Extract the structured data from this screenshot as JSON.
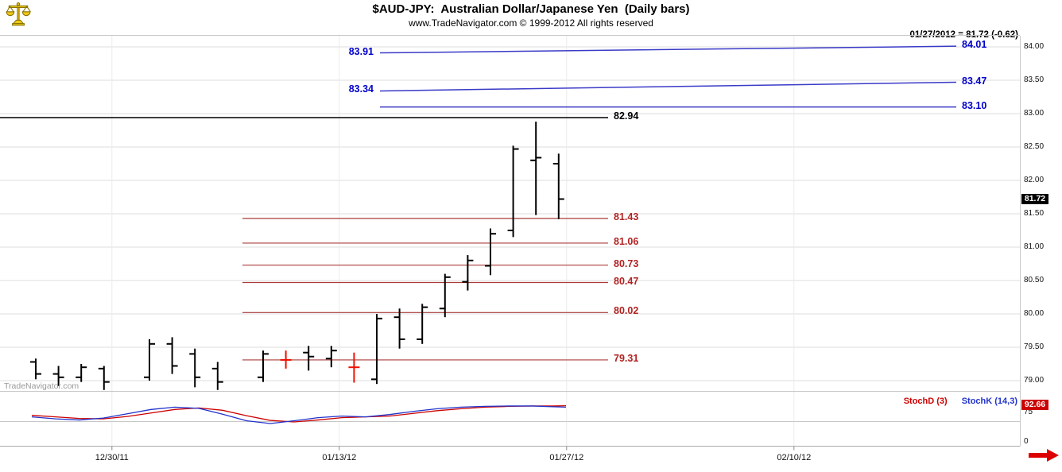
{
  "header": {
    "title": "$AUD-JPY:  Australian Dollar/Japanese Yen  (Daily bars)",
    "subtitle": "www.TradeNavigator.com © 1999-2012 All rights reserved",
    "quote_readout": "01/27/2012 = 81.72 (-0.62)"
  },
  "watermark": "TradeNavigator.com",
  "colors": {
    "bar": "#000000",
    "bar_highlight": "#ee1100",
    "level_red": "#aa3c3c",
    "label_red": "#b22222",
    "level_blue": "#3a3ac8",
    "label_blue": "#0000cc",
    "level_black": "#000000",
    "stoch_d": "#cc0000",
    "stoch_k": "#2233cc",
    "grid": "#dcdcdc",
    "grid_vertical": "#ebebeb",
    "separator": "#c8c8c8"
  },
  "chart_data": {
    "type": "ohlc-bar",
    "symbol": "$AUD-JPY",
    "interval": "Daily bars",
    "last_date": "01/27/2012",
    "last_close": 81.72,
    "last_change": -0.62,
    "price_axis": {
      "last_label": "81.72",
      "ticks": [
        {
          "label": "84.00",
          "value": 84.0
        },
        {
          "label": "83.50",
          "value": 83.5
        },
        {
          "label": "83.00",
          "value": 83.0
        },
        {
          "label": "82.50",
          "value": 82.5
        },
        {
          "label": "82.00",
          "value": 82.0
        },
        {
          "label": "81.50",
          "value": 81.5
        },
        {
          "label": "81.00",
          "value": 81.0
        },
        {
          "label": "80.50",
          "value": 80.5
        },
        {
          "label": "80.00",
          "value": 80.0
        },
        {
          "label": "79.50",
          "value": 79.5
        },
        {
          "label": "79.00",
          "value": 79.0
        }
      ]
    },
    "x_axis": {
      "labels": [
        {
          "label": "12/30/11",
          "slot": 3
        },
        {
          "label": "01/13/12",
          "slot": 13
        },
        {
          "label": "01/27/12",
          "slot": 23
        },
        {
          "label": "02/10/12",
          "slot": 33
        }
      ]
    },
    "bars": [
      {
        "slot": 0,
        "o": 79.28,
        "h": 79.33,
        "l": 79.02,
        "c": 79.1
      },
      {
        "slot": 1,
        "o": 79.1,
        "h": 79.22,
        "l": 78.92,
        "c": 79.05
      },
      {
        "slot": 2,
        "o": 79.05,
        "h": 79.25,
        "l": 78.98,
        "c": 79.2
      },
      {
        "slot": 3,
        "o": 79.18,
        "h": 79.22,
        "l": 78.86,
        "c": 78.98
      },
      {
        "slot": 5,
        "o": 79.05,
        "h": 79.62,
        "l": 79.0,
        "c": 79.55
      },
      {
        "slot": 6,
        "o": 79.55,
        "h": 79.65,
        "l": 79.1,
        "c": 79.22
      },
      {
        "slot": 7,
        "o": 79.4,
        "h": 79.48,
        "l": 78.9,
        "c": 79.05
      },
      {
        "slot": 8,
        "o": 79.18,
        "h": 79.28,
        "l": 78.86,
        "c": 78.98
      },
      {
        "slot": 10,
        "o": 79.05,
        "h": 79.45,
        "l": 78.98,
        "c": 79.4
      },
      {
        "slot": 11,
        "o": 79.31,
        "h": 79.45,
        "l": 79.18,
        "c": 79.31,
        "red": true
      },
      {
        "slot": 12,
        "o": 79.42,
        "h": 79.52,
        "l": 79.15,
        "c": 79.36
      },
      {
        "slot": 13,
        "o": 79.33,
        "h": 79.52,
        "l": 79.2,
        "c": 79.45
      },
      {
        "slot": 14,
        "o": 79.2,
        "h": 79.42,
        "l": 78.97,
        "c": 79.2,
        "red": true
      },
      {
        "slot": 15,
        "o": 79.02,
        "h": 80.0,
        "l": 78.95,
        "c": 79.93
      },
      {
        "slot": 16,
        "o": 79.95,
        "h": 80.08,
        "l": 79.48,
        "c": 79.62
      },
      {
        "slot": 17,
        "o": 79.62,
        "h": 80.15,
        "l": 79.55,
        "c": 80.1
      },
      {
        "slot": 18,
        "o": 80.08,
        "h": 80.6,
        "l": 79.95,
        "c": 80.55
      },
      {
        "slot": 19,
        "o": 80.48,
        "h": 80.88,
        "l": 80.35,
        "c": 80.8
      },
      {
        "slot": 20,
        "o": 80.72,
        "h": 81.28,
        "l": 80.58,
        "c": 81.2
      },
      {
        "slot": 21,
        "o": 81.25,
        "h": 82.52,
        "l": 81.15,
        "c": 82.47
      },
      {
        "slot": 22,
        "o": 82.3,
        "h": 82.88,
        "l": 81.48,
        "c": 82.34
      },
      {
        "slot": 23,
        "o": 82.25,
        "h": 82.4,
        "l": 81.42,
        "c": 81.72
      }
    ],
    "levels": {
      "black": [
        {
          "label": "82.94",
          "price": 82.94
        }
      ],
      "red": [
        {
          "label": "81.43",
          "price": 81.43
        },
        {
          "label": "81.06",
          "price": 81.06
        },
        {
          "label": "80.73",
          "price": 80.73
        },
        {
          "label": "80.47",
          "price": 80.47
        },
        {
          "label": "80.02",
          "price": 80.02
        },
        {
          "label": "79.31",
          "price": 79.31
        }
      ],
      "blue": [
        {
          "left_label": "83.91",
          "left_price": 83.91,
          "right_label": "84.01",
          "right_price": 84.01
        },
        {
          "left_label": "83.34",
          "left_price": 83.34,
          "right_label": "83.47",
          "right_price": 83.47
        },
        {
          "left_label": "",
          "left_price": 83.1,
          "right_label": "83.10",
          "right_price": 83.1
        }
      ]
    },
    "stoch": {
      "legend_d": "StochD (3)",
      "legend_k": "StochK (14,3)",
      "last_label": "92.66",
      "last_value": 92.66,
      "axis_labels": [
        {
          "label": "75",
          "value": 75
        },
        {
          "label": "0",
          "value": 0
        }
      ],
      "x": [
        40,
        70,
        100,
        130,
        160,
        190,
        220,
        250,
        280,
        310,
        340,
        370,
        400,
        430,
        460,
        490,
        520,
        550,
        580,
        610,
        640,
        670,
        695,
        712
      ],
      "k": [
        64,
        59,
        56,
        61,
        72,
        83,
        89,
        86,
        71,
        54,
        47,
        54,
        62,
        66,
        64,
        70,
        78,
        85,
        89,
        91,
        92,
        92,
        90,
        89
      ],
      "d": [
        68,
        64,
        60,
        59,
        65,
        74,
        83,
        87,
        81,
        67,
        55,
        51,
        56,
        62,
        64,
        66,
        73,
        80,
        85,
        89,
        91,
        92,
        92,
        92.66
      ]
    }
  }
}
